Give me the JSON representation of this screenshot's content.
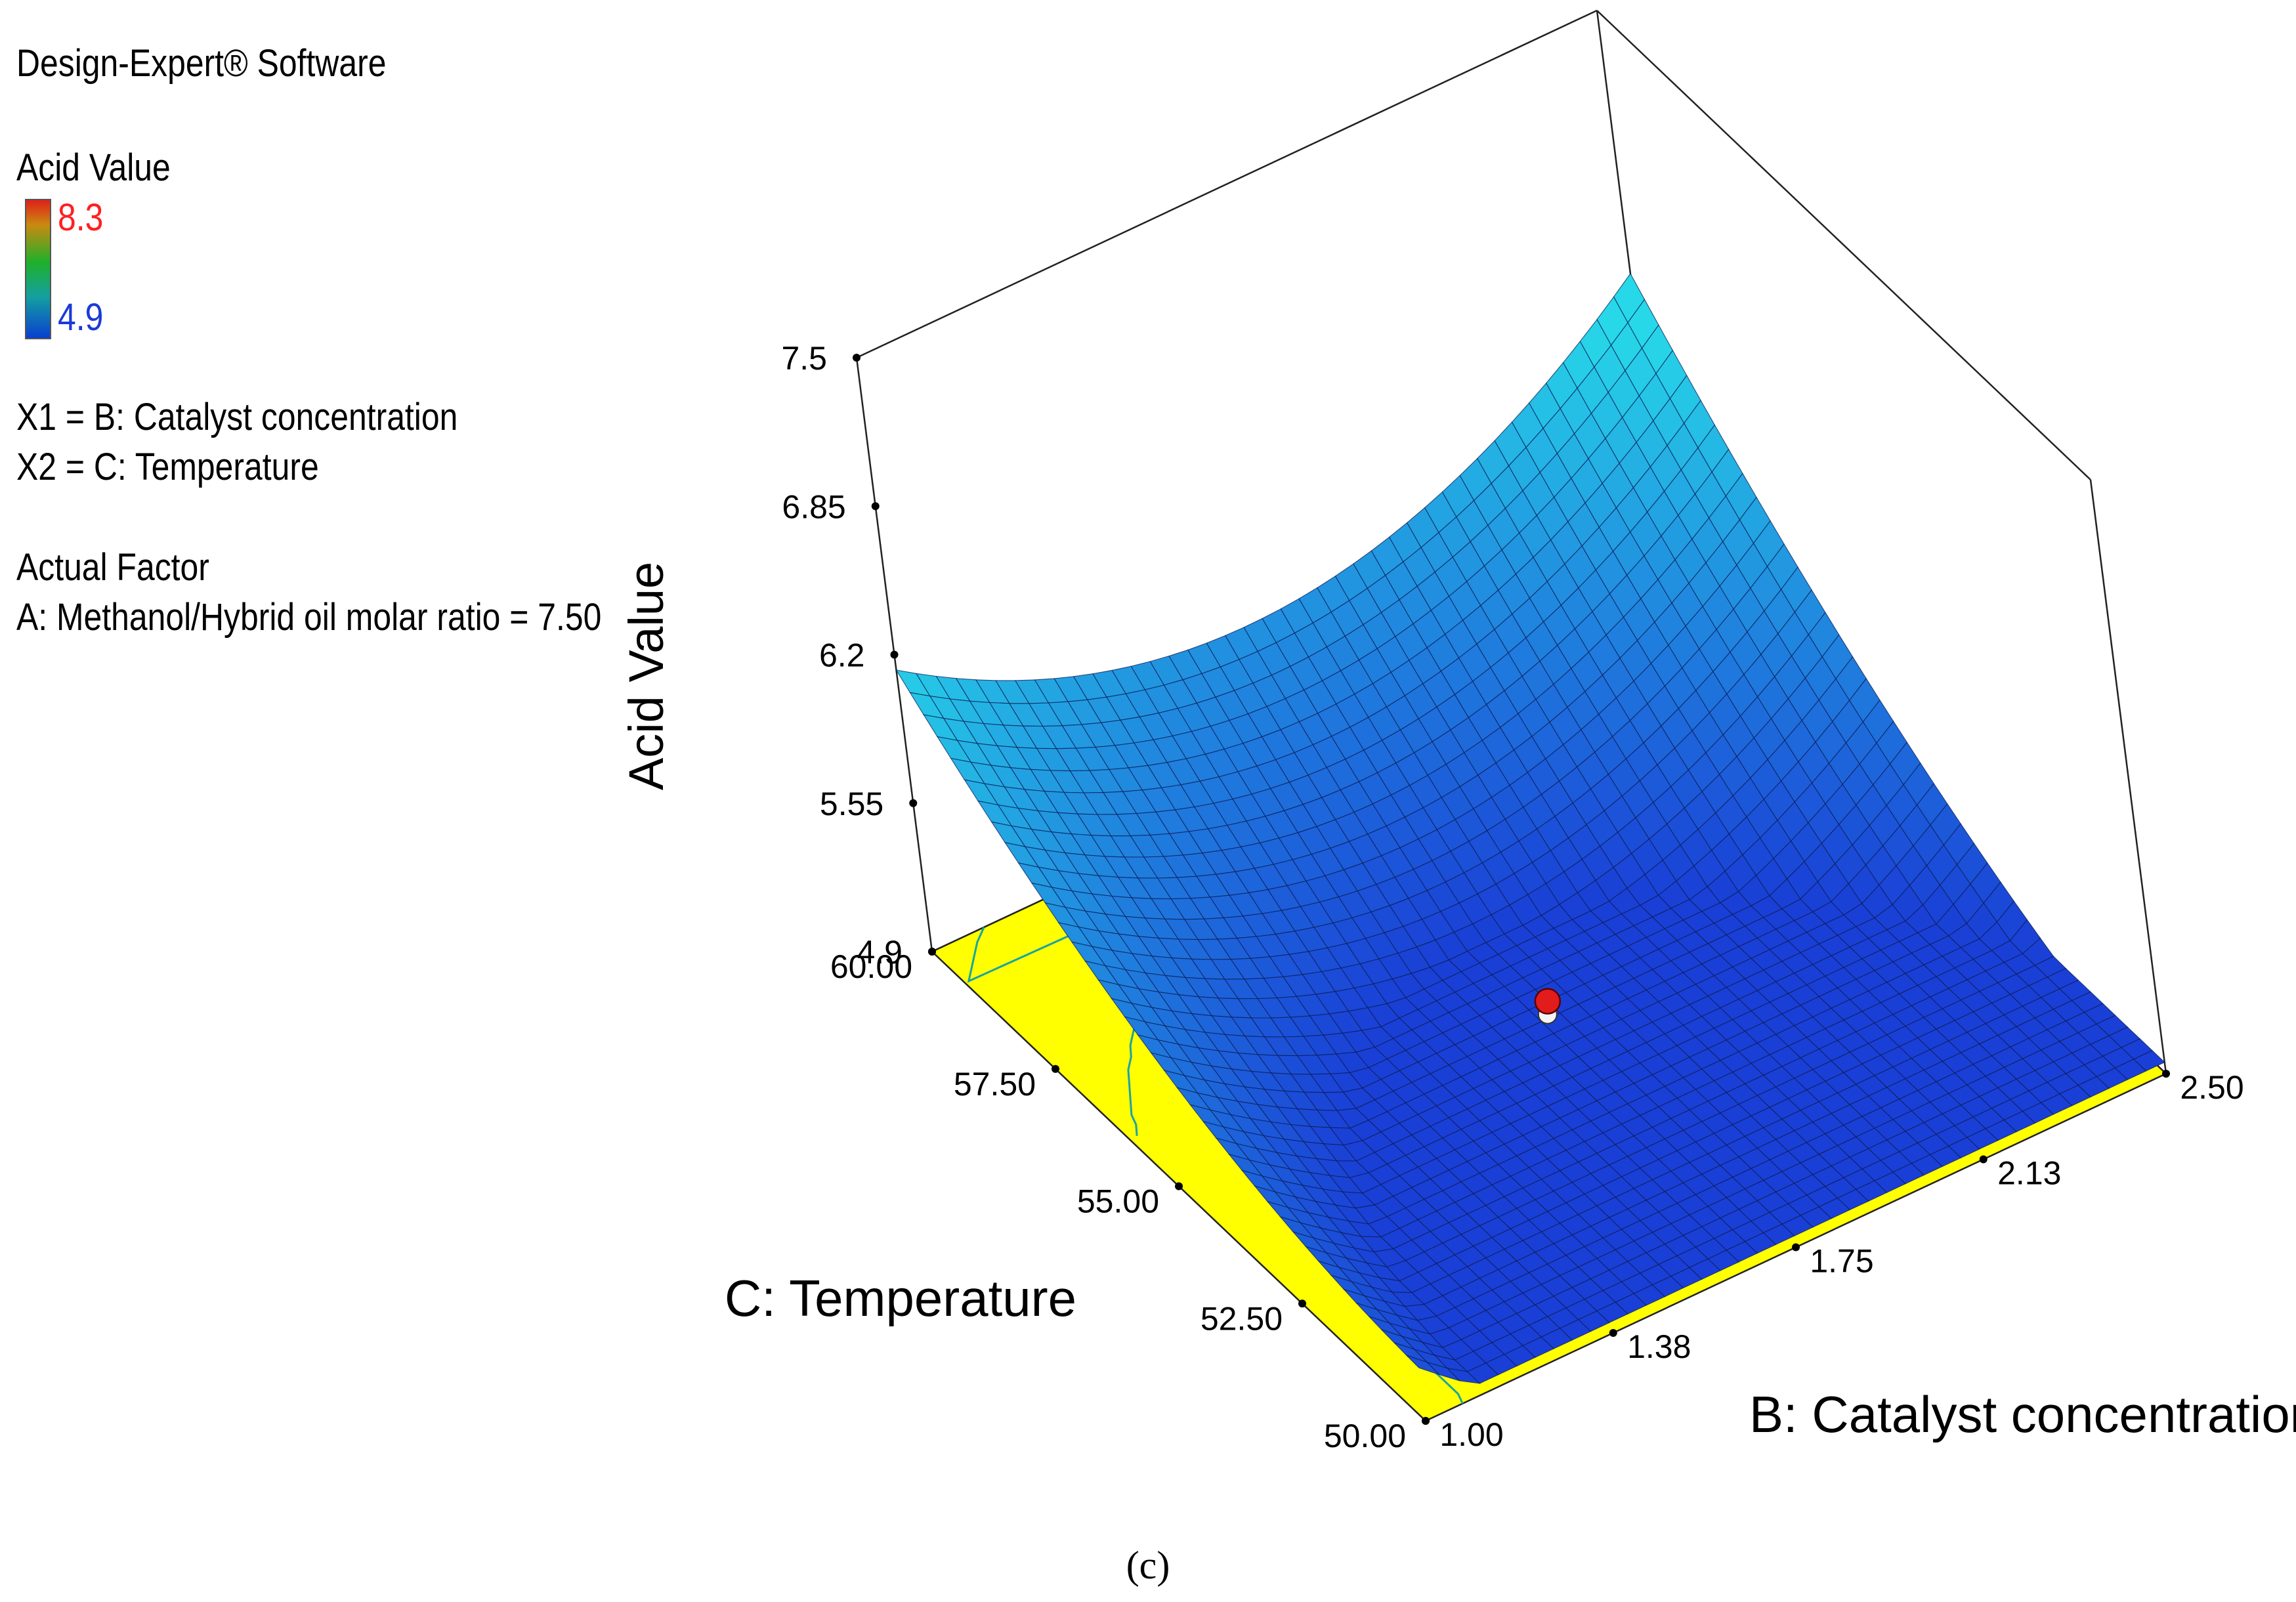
{
  "legend": {
    "software": "Design-Expert® Software",
    "response": "Acid Value",
    "color_high": "8.3",
    "color_low": "4.9",
    "x1": "X1 = B: Catalyst concentration",
    "x2": "X2 = C: Temperature",
    "actual_factor_heading": "Actual Factor",
    "actual_factor": "A: Methanol/Hybrid oil molar ratio = 7.50"
  },
  "caption": "(c)",
  "colors": {
    "floor": "#ffff00",
    "contour": "#1aa5a0",
    "surface_low": "#1a3fd6",
    "surface_high": "#27d8e8",
    "high_text": "#ff2020",
    "low_text": "#1a3ad8",
    "point": "#e21b1b"
  },
  "chart_data": {
    "type": "surface3d",
    "zlabel": "Acid Value",
    "xlabel": "B: Catalyst concentration",
    "ylabel": "C: Temperature",
    "x_ticks": [
      "1.00",
      "1.38",
      "1.75",
      "2.13",
      "2.50"
    ],
    "y_ticks": [
      "50.00",
      "52.50",
      "55.00",
      "57.50",
      "60.00"
    ],
    "z_ticks": [
      "4.9",
      "5.55",
      "6.2",
      "6.85",
      "7.5"
    ],
    "xlim": [
      1.0,
      2.5
    ],
    "ylim": [
      50,
      60
    ],
    "zlim": [
      4.9,
      7.5
    ],
    "corner_values": [
      {
        "x": 1.0,
        "y": 50,
        "z": 5.2
      },
      {
        "x": 2.5,
        "y": 50,
        "z": 5.2
      },
      {
        "x": 1.0,
        "y": 60,
        "z": 6.2
      },
      {
        "x": 2.5,
        "y": 60,
        "z": 6.8
      }
    ],
    "minimum": {
      "x": 1.85,
      "y": 55.0,
      "z": 4.95
    },
    "design_point": {
      "x": 1.75,
      "y": 55.0,
      "z": 4.95
    },
    "contour_levels": [
      5.0,
      5.5,
      6.0,
      6.5
    ],
    "grid_lines": 40
  }
}
